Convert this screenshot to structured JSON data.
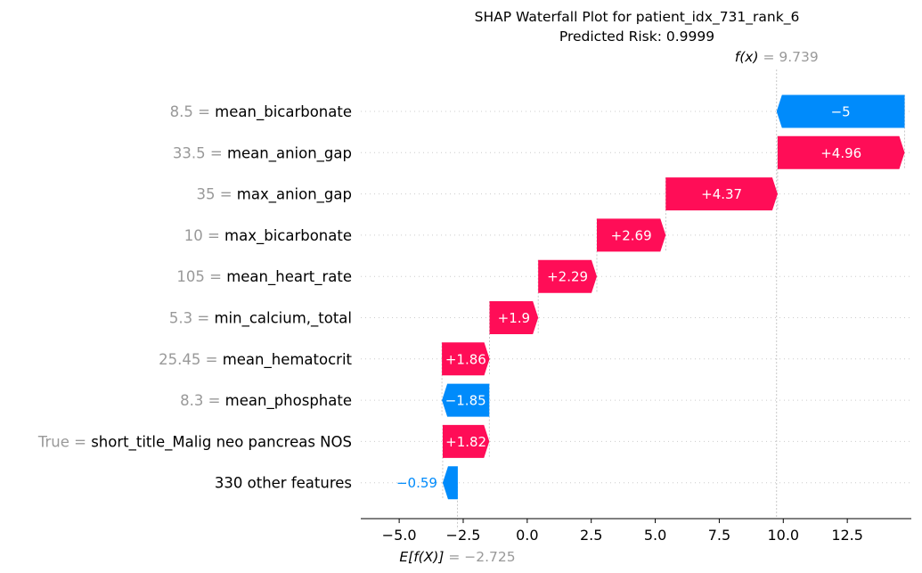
{
  "chart_data": {
    "type": "waterfall",
    "title": "SHAP Waterfall Plot for patient_idx_731_rank_6",
    "subtitle": "Predicted Risk: 0.9999",
    "fx": {
      "label": "f(x)",
      "value_text": "9.739",
      "value": 9.739
    },
    "base": {
      "label": "E[f(X)]",
      "value_text": "−2.725",
      "value": -2.725
    },
    "xlim": [
      -6.5,
      15.0
    ],
    "xticks": [
      {
        "value": -5.0,
        "label": "−5.0"
      },
      {
        "value": -2.5,
        "label": "−2.5"
      },
      {
        "value": 0.0,
        "label": "0.0"
      },
      {
        "value": 2.5,
        "label": "2.5"
      },
      {
        "value": 5.0,
        "label": "5.0"
      },
      {
        "value": 7.5,
        "label": "7.5"
      },
      {
        "value": 10.0,
        "label": "10.0"
      },
      {
        "value": 12.5,
        "label": "12.5"
      }
    ],
    "colors": {
      "positive": "#ff0d57",
      "negative": "#008bfb",
      "value_grey": "#999999"
    },
    "features": [
      {
        "value": "8.5",
        "name": "mean_bicarbonate",
        "shap": -5.0,
        "label": "−5"
      },
      {
        "value": "33.5",
        "name": "mean_anion_gap",
        "shap": 4.96,
        "label": "+4.96"
      },
      {
        "value": "35",
        "name": "max_anion_gap",
        "shap": 4.37,
        "label": "+4.37"
      },
      {
        "value": "10",
        "name": "max_bicarbonate",
        "shap": 2.69,
        "label": "+2.69"
      },
      {
        "value": "105",
        "name": "mean_heart_rate",
        "shap": 2.29,
        "label": "+2.29"
      },
      {
        "value": "5.3",
        "name": "min_calcium,_total",
        "shap": 1.9,
        "label": "+1.9"
      },
      {
        "value": "25.45",
        "name": "mean_hematocrit",
        "shap": 1.86,
        "label": "+1.86"
      },
      {
        "value": "8.3",
        "name": "mean_phosphate",
        "shap": -1.85,
        "label": "−1.85"
      },
      {
        "value": "True",
        "name": "short_title_Malig neo pancreas NOS",
        "shap": 1.82,
        "label": "+1.82"
      },
      {
        "value": "",
        "name": "330 other features",
        "shap": -0.59,
        "label": "−0.59"
      }
    ]
  }
}
